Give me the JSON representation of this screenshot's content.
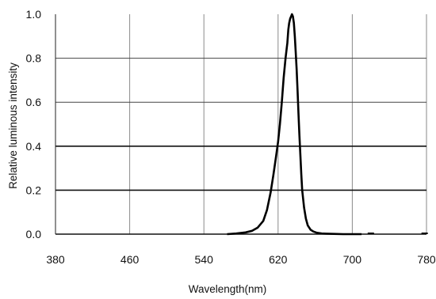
{
  "chart_data": {
    "type": "line",
    "xlabel": "Wavelength(nm)",
    "ylabel": "Relative luminous intensity",
    "xlim": [
      380,
      780
    ],
    "ylim": [
      0,
      1.0
    ],
    "x_ticks": [
      380,
      460,
      540,
      620,
      700,
      780
    ],
    "x_tick_labels": [
      "380",
      "460",
      "540",
      "620",
      "700",
      "780"
    ],
    "y_ticks": [
      0,
      0.2,
      0.4,
      0.6,
      0.8,
      1.0
    ],
    "y_tick_labels": [
      "0.0",
      "0.2",
      "0.4",
      "0.6",
      "0.8",
      "1.0"
    ],
    "grid": true,
    "legend": "none",
    "line_color": "#000000",
    "grid_color": "#8a8a8a",
    "series": [
      {
        "values_x": [
          565,
          575,
          585,
          592,
          598,
          604,
          608,
          612,
          615,
          618,
          620,
          622,
          624,
          626,
          628,
          630,
          631,
          632,
          633,
          634,
          635,
          636,
          637,
          638,
          639,
          640,
          641,
          642,
          643,
          644,
          645,
          646,
          648,
          650,
          652,
          655,
          658,
          662,
          667,
          672,
          680,
          690,
          700,
          710
        ],
        "values_y": [
          0.0,
          0.003,
          0.008,
          0.015,
          0.03,
          0.06,
          0.11,
          0.19,
          0.27,
          0.36,
          0.42,
          0.5,
          0.6,
          0.71,
          0.8,
          0.87,
          0.93,
          0.96,
          0.98,
          0.99,
          1.0,
          0.99,
          0.96,
          0.9,
          0.83,
          0.75,
          0.65,
          0.55,
          0.45,
          0.36,
          0.27,
          0.2,
          0.12,
          0.07,
          0.04,
          0.02,
          0.012,
          0.006,
          0.003,
          0.002,
          0.001,
          0.0,
          0.0,
          0.0
        ]
      }
    ]
  }
}
